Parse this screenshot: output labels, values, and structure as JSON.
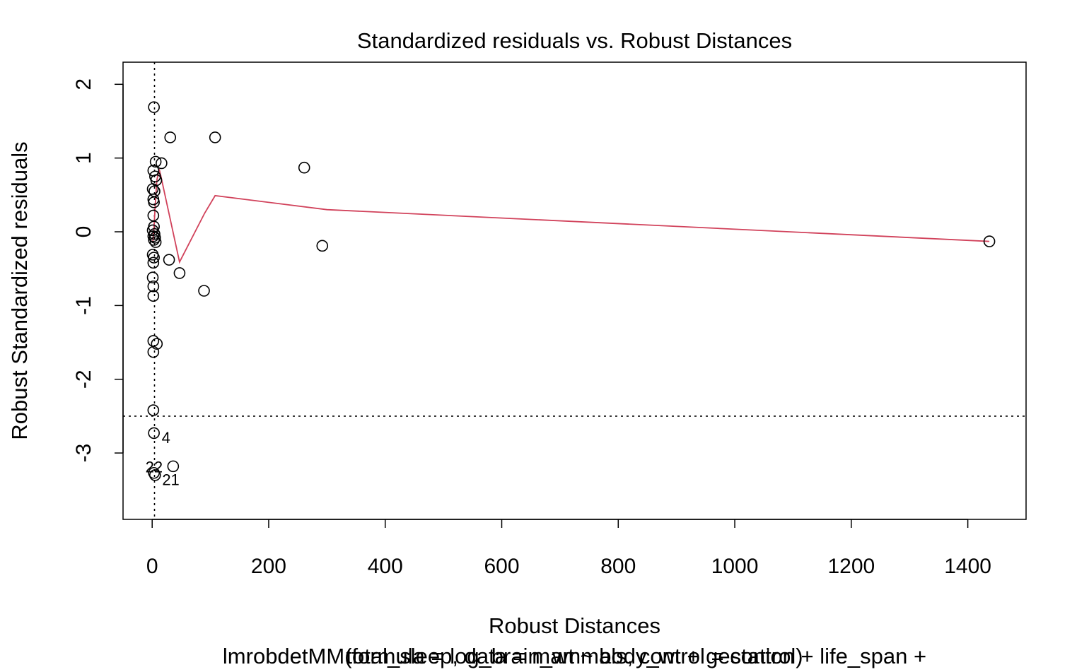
{
  "chart_data": {
    "type": "scatter",
    "title": "Standardized residuals vs. Robust Distances",
    "xlabel": "Robust Distances",
    "ylabel": "Robust Standardized residuals",
    "subtitle_lines": [
      "lmrobdetMM(formula = log_brain_wt ~ body_wt + gestation + life_span +",
      "total_sleep, data = mammals, control = control)"
    ],
    "xlim": [
      -50,
      1500
    ],
    "ylim": [
      -3.9,
      2.3
    ],
    "x_ticks": [
      0,
      200,
      400,
      600,
      800,
      1000,
      1200,
      1400
    ],
    "y_ticks": [
      -3,
      -2,
      -1,
      0,
      1,
      2
    ],
    "grid": false,
    "reference_lines": {
      "vertical_x": 4,
      "horizontal_y": -2.5
    },
    "smoother": {
      "color": "#d1425b",
      "x": [
        1,
        3,
        6,
        8,
        12,
        15,
        47,
        90,
        108,
        300,
        1437
      ],
      "y": [
        -0.15,
        0.05,
        0.45,
        0.7,
        0.85,
        0.75,
        -0.41,
        0.25,
        0.49,
        0.3,
        -0.13
      ]
    },
    "points": [
      {
        "x": 3,
        "y": 1.69
      },
      {
        "x": 31,
        "y": 1.28
      },
      {
        "x": 108,
        "y": 1.28
      },
      {
        "x": 6,
        "y": 0.95
      },
      {
        "x": 16,
        "y": 0.93
      },
      {
        "x": 261,
        "y": 0.87
      },
      {
        "x": 2,
        "y": 0.83
      },
      {
        "x": 5,
        "y": 0.75
      },
      {
        "x": 7,
        "y": 0.7
      },
      {
        "x": 1,
        "y": 0.58
      },
      {
        "x": 4,
        "y": 0.55
      },
      {
        "x": 2,
        "y": 0.44
      },
      {
        "x": 3,
        "y": 0.4
      },
      {
        "x": 2,
        "y": 0.22
      },
      {
        "x": 3,
        "y": 0.07
      },
      {
        "x": 1,
        "y": 0.02
      },
      {
        "x": 4,
        "y": -0.03
      },
      {
        "x": 2,
        "y": -0.06
      },
      {
        "x": 5,
        "y": -0.08
      },
      {
        "x": 3,
        "y": -0.11
      },
      {
        "x": 6,
        "y": -0.14
      },
      {
        "x": 292,
        "y": -0.19
      },
      {
        "x": 1437,
        "y": -0.13
      },
      {
        "x": 1,
        "y": -0.31
      },
      {
        "x": 3,
        "y": -0.35
      },
      {
        "x": 29,
        "y": -0.38
      },
      {
        "x": 2,
        "y": -0.42
      },
      {
        "x": 47,
        "y": -0.56
      },
      {
        "x": 1,
        "y": -0.62
      },
      {
        "x": 2,
        "y": -0.74
      },
      {
        "x": 89,
        "y": -0.8
      },
      {
        "x": 2,
        "y": -0.87
      },
      {
        "x": 2,
        "y": -1.48
      },
      {
        "x": 8,
        "y": -1.52
      },
      {
        "x": 2,
        "y": -1.63
      },
      {
        "x": 2,
        "y": -2.42
      },
      {
        "x": 3,
        "y": -2.73,
        "label": "4"
      },
      {
        "x": 36,
        "y": -3.18
      },
      {
        "x": 3,
        "y": -3.27,
        "label": "22"
      },
      {
        "x": 5,
        "y": -3.3,
        "label": "21"
      }
    ]
  }
}
